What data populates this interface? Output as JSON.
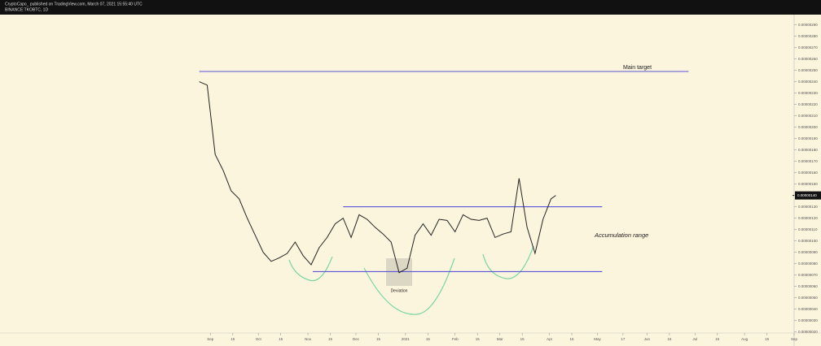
{
  "header": {
    "line1": "CryptoCapo_ published on TradingView.com, March 07, 2021 15:55:40 UTC",
    "line2": "BINANCE:TKOBTC, 1D"
  },
  "chart_data": {
    "type": "line",
    "grid": false,
    "xlim": [
      -129,
      365
    ],
    "ylim": [
      1.9e-07,
      2.99e-06
    ],
    "xticks": [
      {
        "value": 0,
        "label": "Sep"
      },
      {
        "value": 14,
        "label": "15"
      },
      {
        "value": 30,
        "label": "Oct"
      },
      {
        "value": 44,
        "label": "15"
      },
      {
        "value": 61,
        "label": "Nov"
      },
      {
        "value": 75,
        "label": "15"
      },
      {
        "value": 91,
        "label": "Dec"
      },
      {
        "value": 105,
        "label": "15"
      },
      {
        "value": 122,
        "label": "2021"
      },
      {
        "value": 136,
        "label": "15"
      },
      {
        "value": 153,
        "label": "Feb"
      },
      {
        "value": 167,
        "label": "15"
      },
      {
        "value": 181,
        "label": "Mar"
      },
      {
        "value": 195,
        "label": "15"
      },
      {
        "value": 212,
        "label": "Apr"
      },
      {
        "value": 226,
        "label": "15"
      },
      {
        "value": 242,
        "label": "May"
      },
      {
        "value": 258,
        "label": "17"
      },
      {
        "value": 273,
        "label": "Jun"
      },
      {
        "value": 287,
        "label": "15"
      },
      {
        "value": 303,
        "label": "Jul"
      },
      {
        "value": 317,
        "label": "15"
      },
      {
        "value": 334,
        "label": "Aug"
      },
      {
        "value": 348,
        "label": "15"
      },
      {
        "value": 365,
        "label": "Sep"
      }
    ],
    "yticks": [
      {
        "value": 2.9e-06,
        "label": "0.00000290"
      },
      {
        "value": 2.8e-06,
        "label": "0.00000280"
      },
      {
        "value": 2.7e-06,
        "label": "0.00000270"
      },
      {
        "value": 2.6e-06,
        "label": "0.00000260"
      },
      {
        "value": 2.5e-06,
        "label": "0.00000250"
      },
      {
        "value": 2.4e-06,
        "label": "0.00000240"
      },
      {
        "value": 2.3e-06,
        "label": "0.00000230"
      },
      {
        "value": 2.2e-06,
        "label": "0.00000220"
      },
      {
        "value": 2.1e-06,
        "label": "0.00000210"
      },
      {
        "value": 2e-06,
        "label": "0.00000200"
      },
      {
        "value": 1.9e-06,
        "label": "0.00000190"
      },
      {
        "value": 1.8e-06,
        "label": "0.00000180"
      },
      {
        "value": 1.7e-06,
        "label": "0.00000170"
      },
      {
        "value": 1.6e-06,
        "label": "0.00000160"
      },
      {
        "value": 1.5e-06,
        "label": "0.00000150"
      },
      {
        "value": 1.4e-06,
        "label": "0.00000140"
      },
      {
        "value": 1.3e-06,
        "label": "0.00000130"
      },
      {
        "value": 1.2e-06,
        "label": "0.00000120"
      },
      {
        "value": 1.1e-06,
        "label": "0.00000110"
      },
      {
        "value": 1e-06,
        "label": "0.00000100"
      },
      {
        "value": 9e-07,
        "label": "0.00000090"
      },
      {
        "value": 8e-07,
        "label": "0.00000080"
      },
      {
        "value": 7e-07,
        "label": "0.00000070"
      },
      {
        "value": 6e-07,
        "label": "0.00000060"
      },
      {
        "value": 5e-07,
        "label": "0.00000050"
      },
      {
        "value": 4e-07,
        "label": "0.00000040"
      },
      {
        "value": 3e-07,
        "label": "0.00000030"
      },
      {
        "value": 2e-07,
        "label": "0.00000020"
      }
    ],
    "series": [
      {
        "color": "#222222",
        "x": [
          -7,
          -2,
          3,
          8,
          13,
          18,
          23,
          28,
          33,
          38,
          43,
          48,
          53,
          58,
          63,
          68,
          73,
          78,
          83,
          88,
          93,
          98,
          103,
          108,
          113,
          118,
          123,
          128,
          133,
          138,
          143,
          148,
          153,
          158,
          163,
          168,
          173,
          178,
          183,
          188,
          193,
          198,
          203,
          208,
          213,
          216
        ],
        "values": [
          2.4e-06,
          2.37e-06,
          1.76e-06,
          1.62e-06,
          1.44e-06,
          1.37e-06,
          1.2e-06,
          1.05e-06,
          9e-07,
          8.2e-07,
          8.5e-07,
          8.9e-07,
          9.9e-07,
          8.7e-07,
          7.9e-07,
          9.4e-07,
          1.03e-06,
          1.15e-06,
          1.2e-06,
          1.03e-06,
          1.23e-06,
          1.19e-06,
          1.12e-06,
          1.06e-06,
          9.9e-07,
          7.2e-07,
          7.6e-07,
          1.05e-06,
          1.15e-06,
          1.05e-06,
          1.19e-06,
          1.18e-06,
          1.08e-06,
          1.23e-06,
          1.19e-06,
          1.18e-06,
          1.2e-06,
          1.03e-06,
          1.06e-06,
          1.08e-06,
          1.55e-06,
          1.12e-06,
          8.9e-07,
          1.19e-06,
          1.37e-06,
          1.4e-06
        ]
      }
    ],
    "last_price": {
      "value": 1.4e-06,
      "label": "0.00000140"
    },
    "levels": [
      {
        "value": 2.49e-06,
        "x": [
          -7,
          299
        ]
      },
      {
        "value": 1.3e-06,
        "x": [
          83,
          245
        ]
      },
      {
        "value": 7.3e-07,
        "x": [
          64,
          245
        ]
      }
    ],
    "annotations": [
      {
        "text": "Main target"
      },
      {
        "text": "Accumulation range"
      },
      {
        "text": "Deviation"
      }
    ]
  }
}
